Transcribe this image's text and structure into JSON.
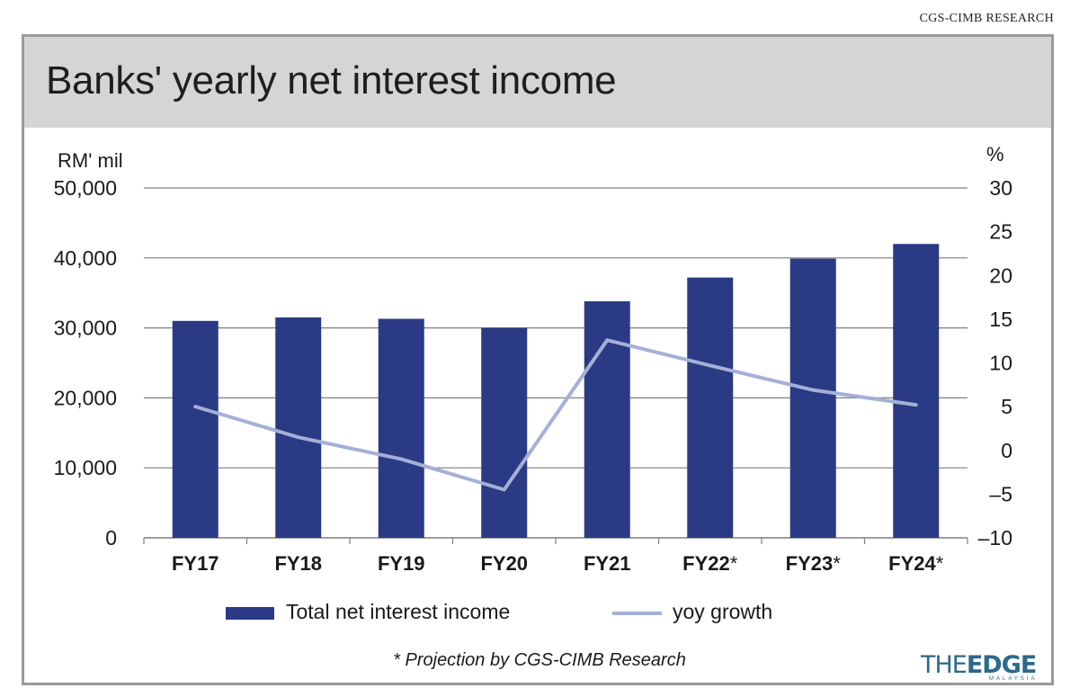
{
  "source": "CGS-CIMB RESEARCH",
  "title": "Banks' yearly net interest income",
  "footnote": "* Projection by CGS-CIMB Research",
  "logo": {
    "part1": "THE",
    "part2": "EDGE",
    "sub": "MALAYSIA"
  },
  "colors": {
    "bar": "#2b3a85",
    "line": "#a4b0d6",
    "grid": "#7f7f7f",
    "header_bg": "#d3d5d7"
  },
  "chart_data": {
    "type": "bar",
    "categories": [
      "FY17",
      "FY18",
      "FY19",
      "FY20",
      "FY21",
      "FY22*",
      "FY23*",
      "FY24*"
    ],
    "series": [
      {
        "name": "Total net interest income",
        "type": "bar",
        "axis": "left",
        "values": [
          31000,
          31500,
          31300,
          30000,
          33800,
          37200,
          39900,
          42000
        ]
      },
      {
        "name": "yoy growth",
        "type": "line",
        "axis": "right",
        "values": [
          5.0,
          1.5,
          -1.0,
          -4.5,
          12.6,
          9.7,
          6.9,
          5.2
        ]
      }
    ],
    "y_left": {
      "label": "RM' mil",
      "min": 0,
      "max": 50000,
      "ticks": [
        "0",
        "10,000",
        "20,000",
        "30,000",
        "40,000",
        "50,000"
      ]
    },
    "y_right": {
      "label": "%",
      "min": -10,
      "max": 30,
      "ticks": [
        "–10",
        "–5",
        "0",
        "5",
        "10",
        "15",
        "20",
        "25",
        "30"
      ]
    },
    "grid": true,
    "legend_position": "bottom"
  }
}
